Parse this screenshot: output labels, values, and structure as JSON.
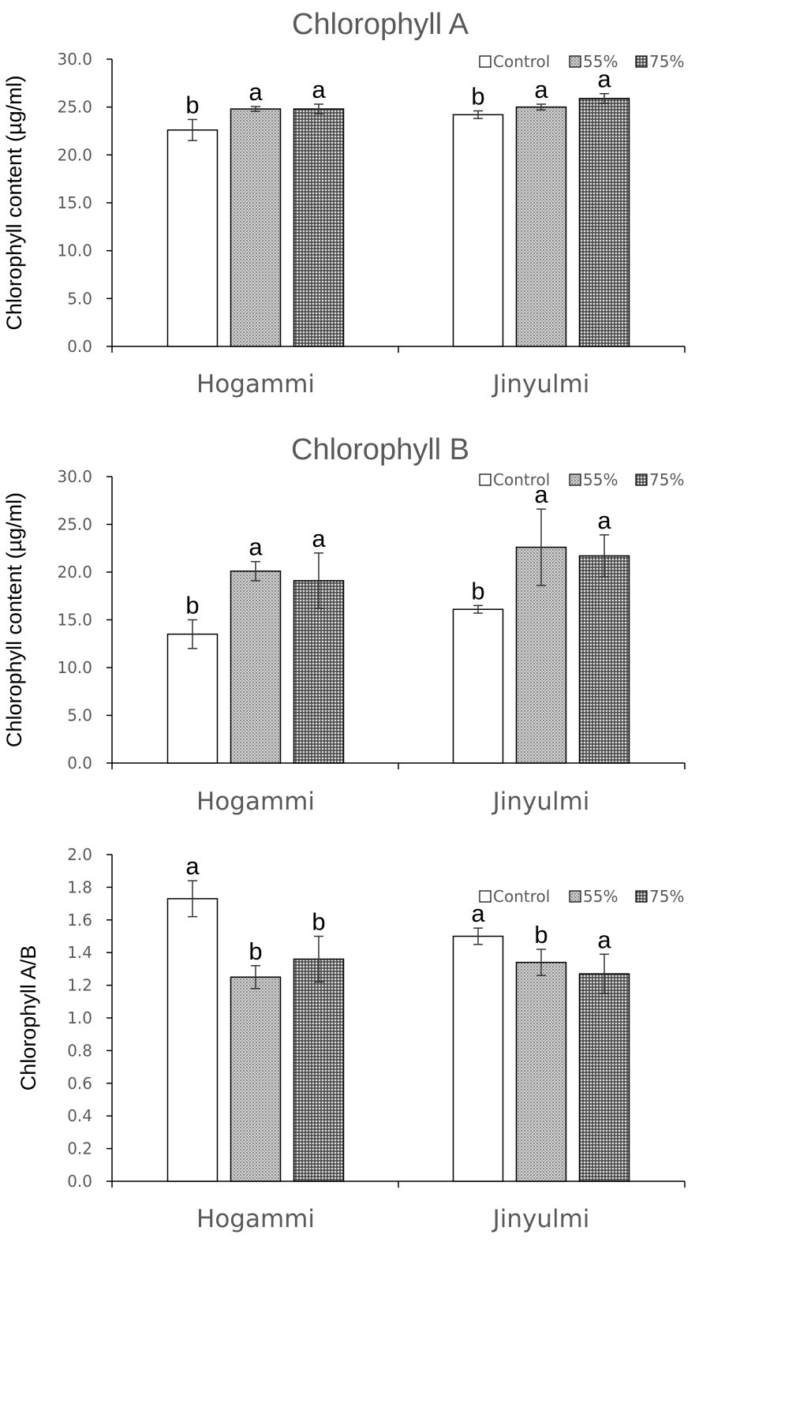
{
  "colors": {
    "axis": "#000000",
    "text": "#595959",
    "bar_stroke": "#000000",
    "error_bar": "#333333"
  },
  "legend_items": [
    {
      "label": "Control",
      "pattern": "white"
    },
    {
      "label": "55%",
      "pattern": "light-dots"
    },
    {
      "label": "75%",
      "pattern": "dark-dots"
    }
  ],
  "chart_data": [
    {
      "type": "bar",
      "title": "Chlorophyll  A",
      "ylabel": "Chlorophyll content (µg/ml)",
      "xlabel": "",
      "categories": [
        "Hogammi",
        "Jinyulmi"
      ],
      "ylim": [
        0,
        30
      ],
      "yticks": [
        "0.0",
        "5.0",
        "10.0",
        "15.0",
        "20.0",
        "25.0",
        "30.0"
      ],
      "legend_position": "top-right",
      "series": [
        {
          "name": "Control",
          "values": [
            22.6,
            24.2
          ],
          "errors": [
            1.1,
            0.4
          ],
          "letters": [
            "b",
            "b"
          ]
        },
        {
          "name": "55%",
          "values": [
            24.8,
            25.0
          ],
          "errors": [
            0.25,
            0.3
          ],
          "letters": [
            "a",
            "a"
          ]
        },
        {
          "name": "75%",
          "values": [
            24.8,
            25.9
          ],
          "errors": [
            0.5,
            0.5
          ],
          "letters": [
            "a",
            "a"
          ]
        }
      ]
    },
    {
      "type": "bar",
      "title": "Chlorophyll  B",
      "ylabel": "Chlorophyll content (µg/ml)",
      "xlabel": "",
      "categories": [
        "Hogammi",
        "Jinyulmi"
      ],
      "ylim": [
        0,
        30
      ],
      "yticks": [
        "0.0",
        "5.0",
        "10.0",
        "15.0",
        "20.0",
        "25.0",
        "30.0"
      ],
      "legend_position": "top-right",
      "series": [
        {
          "name": "Control",
          "values": [
            13.5,
            16.1
          ],
          "errors": [
            1.5,
            0.4
          ],
          "letters": [
            "b",
            "b"
          ]
        },
        {
          "name": "55%",
          "values": [
            20.1,
            22.6
          ],
          "errors": [
            1.0,
            4.0
          ],
          "letters": [
            "a",
            "a"
          ]
        },
        {
          "name": "75%",
          "values": [
            19.1,
            21.7
          ],
          "errors": [
            2.9,
            2.2
          ],
          "letters": [
            "a",
            "a"
          ]
        }
      ]
    },
    {
      "type": "bar",
      "title": "",
      "ylabel": "Chlorophyll  A/B",
      "xlabel": "",
      "categories": [
        "Hogammi",
        "Jinyulmi"
      ],
      "ylim": [
        0,
        2
      ],
      "yticks": [
        "0.0",
        "0.2",
        "0.4",
        "0.6",
        "0.8",
        "1.0",
        "1.2",
        "1.4",
        "1.6",
        "1.8",
        "2.0"
      ],
      "legend_position": "top-right",
      "series": [
        {
          "name": "Control",
          "values": [
            1.73,
            1.5
          ],
          "errors": [
            0.11,
            0.05
          ],
          "letters": [
            "a",
            "a"
          ]
        },
        {
          "name": "55%",
          "values": [
            1.25,
            1.34
          ],
          "errors": [
            0.07,
            0.08
          ],
          "letters": [
            "b",
            "b"
          ]
        },
        {
          "name": "75%",
          "values": [
            1.36,
            1.27
          ],
          "errors": [
            0.14,
            0.12
          ],
          "letters": [
            "b",
            "a"
          ]
        }
      ]
    }
  ]
}
